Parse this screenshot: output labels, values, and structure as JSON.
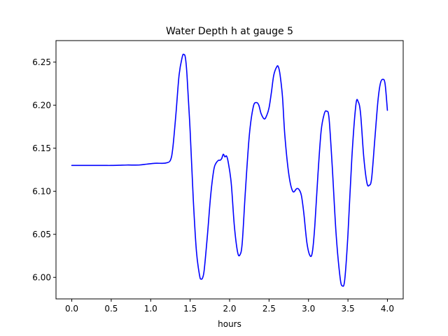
{
  "chart_data": {
    "type": "line",
    "title": "Water Depth h at gauge 5",
    "xlabel": "hours",
    "ylabel": "",
    "xlim": [
      -0.2,
      4.2
    ],
    "ylim": [
      5.975,
      6.275
    ],
    "xticks": [
      0.0,
      0.5,
      1.0,
      1.5,
      2.0,
      2.5,
      3.0,
      3.5,
      4.0
    ],
    "xtick_labels": [
      "0.0",
      "0.5",
      "1.0",
      "1.5",
      "2.0",
      "2.5",
      "3.0",
      "3.5",
      "4.0"
    ],
    "yticks": [
      6.0,
      6.05,
      6.1,
      6.15,
      6.2,
      6.25
    ],
    "ytick_labels": [
      "6.00",
      "6.05",
      "6.10",
      "6.15",
      "6.20",
      "6.25"
    ],
    "grid": false,
    "series": [
      {
        "color": "#0000ff",
        "x": [
          0.0,
          0.2,
          0.4,
          0.5,
          0.6,
          0.7,
          0.85,
          0.95,
          1.05,
          1.15,
          1.2,
          1.25,
          1.28,
          1.32,
          1.36,
          1.4,
          1.42,
          1.44,
          1.46,
          1.5,
          1.54,
          1.58,
          1.62,
          1.64,
          1.66,
          1.68,
          1.72,
          1.76,
          1.8,
          1.83,
          1.86,
          1.88,
          1.9,
          1.92,
          1.94,
          1.96,
          1.98,
          2.02,
          2.06,
          2.1,
          2.13,
          2.16,
          2.2,
          2.25,
          2.3,
          2.34,
          2.37,
          2.4,
          2.44,
          2.47,
          2.5,
          2.53,
          2.56,
          2.6,
          2.62,
          2.64,
          2.67,
          2.7,
          2.75,
          2.8,
          2.85,
          2.88,
          2.91,
          2.94,
          2.98,
          3.02,
          3.05,
          3.08,
          3.12,
          3.16,
          3.2,
          3.23,
          3.26,
          3.3,
          3.35,
          3.4,
          3.43,
          3.46,
          3.5,
          3.55,
          3.6,
          3.63,
          3.66,
          3.7,
          3.74,
          3.77,
          3.8,
          3.84,
          3.88,
          3.91,
          3.94,
          3.97,
          4.0
        ],
        "y": [
          6.13,
          6.13,
          6.13,
          6.13,
          6.1302,
          6.1305,
          6.1305,
          6.1315,
          6.1325,
          6.1325,
          6.133,
          6.136,
          6.15,
          6.19,
          6.235,
          6.256,
          6.259,
          6.255,
          6.235,
          6.17,
          6.09,
          6.03,
          6.002,
          5.998,
          6.0,
          6.01,
          6.05,
          6.095,
          6.125,
          6.133,
          6.136,
          6.136,
          6.138,
          6.143,
          6.14,
          6.141,
          6.135,
          6.11,
          6.06,
          6.03,
          6.026,
          6.04,
          6.1,
          6.165,
          6.198,
          6.203,
          6.2,
          6.19,
          6.184,
          6.188,
          6.197,
          6.215,
          6.235,
          6.245,
          6.244,
          6.235,
          6.21,
          6.165,
          6.12,
          6.1,
          6.103,
          6.102,
          6.095,
          6.075,
          6.04,
          6.025,
          6.03,
          6.06,
          6.12,
          6.17,
          6.19,
          6.193,
          6.185,
          6.13,
          6.05,
          6.0,
          5.99,
          5.998,
          6.05,
          6.14,
          6.2,
          6.204,
          6.19,
          6.14,
          6.11,
          6.107,
          6.115,
          6.16,
          6.205,
          6.225,
          6.23,
          6.225,
          6.194
        ]
      }
    ]
  }
}
